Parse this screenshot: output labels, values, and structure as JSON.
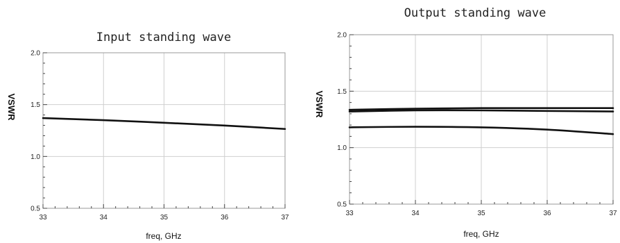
{
  "chart_data": [
    {
      "type": "line",
      "title": "Input standing wave",
      "xlabel": "freq, GHz",
      "ylabel": "VSWR",
      "xlim": [
        33,
        37
      ],
      "ylim": [
        0.5,
        2.0
      ],
      "x_ticks": [
        "33",
        "34",
        "35",
        "36",
        "37"
      ],
      "y_ticks": [
        "0.5",
        "1.0",
        "1.5",
        "2.0"
      ],
      "grid": true,
      "series": [
        {
          "x": [
            33,
            34,
            35,
            36,
            37
          ],
          "values": [
            1.37,
            1.35,
            1.325,
            1.298,
            1.265
          ]
        }
      ]
    },
    {
      "type": "line",
      "title": "Output standing wave",
      "xlabel": "freq, GHz",
      "ylabel": "VSWR",
      "xlim": [
        33,
        37
      ],
      "ylim": [
        0.5,
        2.0
      ],
      "x_ticks": [
        "33",
        "34",
        "35",
        "36",
        "37"
      ],
      "y_ticks": [
        "0.5",
        "1.0",
        "1.5",
        "2.0"
      ],
      "grid": true,
      "series": [
        {
          "x": [
            33,
            34,
            35,
            36,
            37
          ],
          "values": [
            1.335,
            1.345,
            1.35,
            1.35,
            1.35
          ]
        },
        {
          "x": [
            33,
            34,
            35,
            36,
            37
          ],
          "values": [
            1.32,
            1.33,
            1.33,
            1.325,
            1.32
          ]
        },
        {
          "x": [
            33,
            34,
            35,
            36,
            37
          ],
          "values": [
            1.18,
            1.185,
            1.18,
            1.16,
            1.12
          ]
        }
      ]
    }
  ]
}
